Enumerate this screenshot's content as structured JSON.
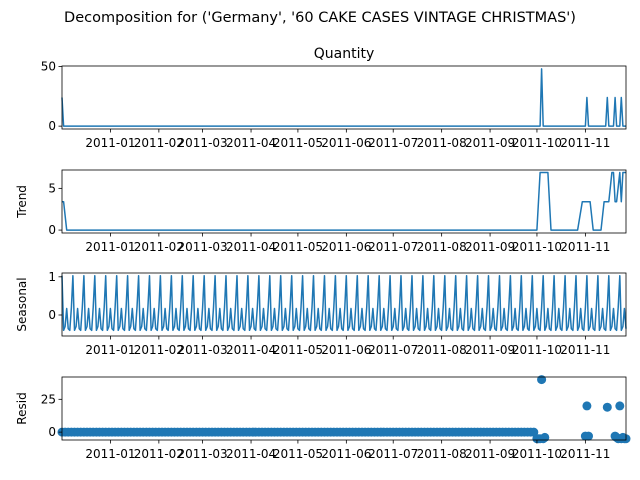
{
  "figure": {
    "title": "Decomposition for ('Germany', '60 CAKE CASES VINTAGE CHRISTMAS')"
  },
  "colors": {
    "series": "#1f77b4",
    "axis": "#000000",
    "background": "#ffffff"
  },
  "chart_data": [
    {
      "type": "line",
      "title": "Quantity",
      "ylabel": "",
      "xlim": [
        "2010-12-01",
        "2011-11-27"
      ],
      "ylim": [
        -2.4,
        50.4
      ],
      "yticks": [
        0,
        50
      ],
      "xticks": [
        "2011-01",
        "2011-02",
        "2011-03",
        "2011-04",
        "2011-05",
        "2011-06",
        "2011-07",
        "2011-08",
        "2011-09",
        "2011-10",
        "2011-11"
      ],
      "x": [
        "2010-12-01",
        "2010-12-02",
        "2011-10-03",
        "2011-10-04",
        "2011-10-05",
        "2011-11-01",
        "2011-11-02",
        "2011-11-03",
        "2011-11-14",
        "2011-11-15",
        "2011-11-16",
        "2011-11-19",
        "2011-11-20",
        "2011-11-21",
        "2011-11-23",
        "2011-11-24",
        "2011-11-25",
        "2011-11-27"
      ],
      "y": [
        24,
        0,
        0,
        48,
        0,
        0,
        24,
        0,
        0,
        24,
        0,
        0,
        24,
        0,
        0,
        24,
        0,
        0
      ]
    },
    {
      "type": "line",
      "title": "",
      "ylabel": "Trend",
      "xlim": [
        "2010-12-01",
        "2011-11-27"
      ],
      "ylim": [
        -0.35,
        7.2
      ],
      "yticks": [
        0,
        5
      ],
      "xticks": [
        "2011-01",
        "2011-02",
        "2011-03",
        "2011-04",
        "2011-05",
        "2011-06",
        "2011-07",
        "2011-08",
        "2011-09",
        "2011-10",
        "2011-11"
      ],
      "x": [
        "2010-12-02",
        "2010-12-04",
        "2011-10-01",
        "2011-10-03",
        "2011-10-08",
        "2011-10-10",
        "2011-10-27",
        "2011-10-30",
        "2011-11-04",
        "2011-11-06",
        "2011-11-11",
        "2011-11-13",
        "2011-11-16",
        "2011-11-18",
        "2011-11-19",
        "2011-11-20",
        "2011-11-21",
        "2011-11-23",
        "2011-11-24",
        "2011-11-25"
      ],
      "y": [
        3.4,
        0,
        0,
        6.9,
        6.9,
        0,
        0,
        3.4,
        3.4,
        0,
        0,
        3.4,
        3.4,
        6.9,
        6.9,
        3.4,
        3.4,
        6.9,
        3.4,
        6.9
      ]
    },
    {
      "type": "line",
      "title": "",
      "ylabel": "Seasonal",
      "xlim": [
        "2010-12-01",
        "2011-11-27"
      ],
      "ylim": [
        -0.55,
        1.1
      ],
      "yticks": [
        0,
        1
      ],
      "xticks": [
        "2011-01",
        "2011-02",
        "2011-03",
        "2011-04",
        "2011-05",
        "2011-06",
        "2011-07",
        "2011-08",
        "2011-09",
        "2011-10",
        "2011-11"
      ],
      "period_days": 7,
      "pattern": [
        1.03,
        -0.4,
        -0.3,
        0.17,
        -0.36,
        -0.4,
        0.2
      ]
    },
    {
      "type": "scatter",
      "title": "",
      "ylabel": "Resid",
      "xlim": [
        "2010-12-01",
        "2011-11-27"
      ],
      "ylim": [
        -6,
        42
      ],
      "yticks": [
        0,
        25
      ],
      "xticks": [
        "2011-01",
        "2011-02",
        "2011-03",
        "2011-04",
        "2011-05",
        "2011-06",
        "2011-07",
        "2011-08",
        "2011-09",
        "2011-10",
        "2011-11"
      ],
      "residual_baseline": 0,
      "x": [
        "2011-10-01",
        "2011-10-02",
        "2011-10-03",
        "2011-10-04",
        "2011-10-05",
        "2011-10-06",
        "2011-11-01",
        "2011-11-02",
        "2011-11-03",
        "2011-11-15",
        "2011-11-20",
        "2011-11-21",
        "2011-11-22",
        "2011-11-23",
        "2011-11-24",
        "2011-11-25",
        "2011-11-26",
        "2011-11-27"
      ],
      "y": [
        -5,
        -5,
        -5,
        40,
        -5,
        -4,
        -3,
        20,
        -3,
        19,
        -3,
        -4,
        -5,
        20,
        -5,
        -4,
        -5,
        -5
      ]
    }
  ]
}
